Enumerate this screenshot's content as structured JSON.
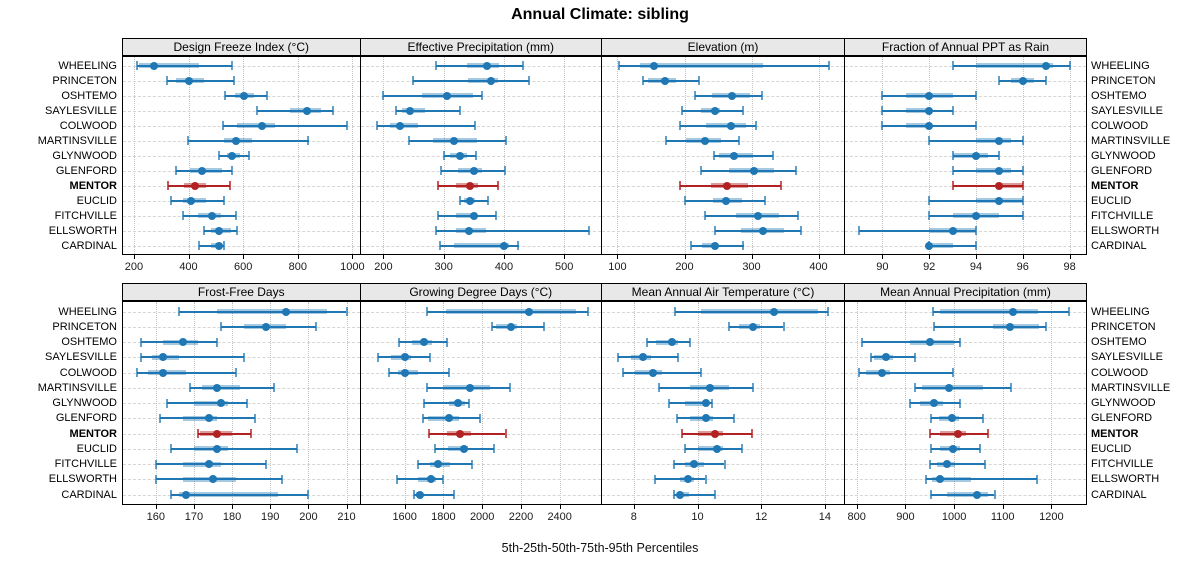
{
  "title": "Annual Climate: sibling",
  "caption": "5th-25th-50th-75th-95th Percentiles",
  "sites": [
    "WHEELING",
    "PRINCETON",
    "OSHTEMO",
    "SAYLESVILLE",
    "COLWOOD",
    "MARTINSVILLE",
    "GLYNWOOD",
    "GLENFORD",
    "MENTOR",
    "EUCLID",
    "FITCHVILLE",
    "ELLSWORTH",
    "CARDINAL"
  ],
  "highlight_site": "MENTOR",
  "percentile_labels": [
    "5th",
    "25th",
    "50th",
    "75th",
    "95th"
  ],
  "colors": {
    "series": "#1f77b4",
    "series_band": "rgba(31,119,180,0.40)",
    "series_cap": "rgba(31,119,180,0.70)",
    "highlight": "#b22222",
    "highlight_band": "rgba(178,34,34,0.45)",
    "highlight_cap": "rgba(178,34,34,0.75)",
    "strip_bg": "#e8e8e8",
    "grid": "#c9c9c9"
  },
  "chart_data": {
    "type": "scatter",
    "subtype": "percentile-interval-dotplot",
    "layout": "2 rows x 4 columns of panels, shared site rows, MENTOR highlighted in red",
    "grid": true,
    "panels": [
      {
        "title": "Design Freeze Index (°C)",
        "row": "top",
        "ticks": [
          200,
          400,
          600,
          800,
          1000
        ],
        "range": [
          160,
          1026
        ],
        "series": [
          [
            212,
            220,
            275,
            440,
            560
          ],
          [
            320,
            355,
            402,
            457,
            566
          ],
          [
            535,
            570,
            602,
            640,
            687
          ],
          [
            650,
            772,
            833,
            887,
            930
          ],
          [
            526,
            578,
            669,
            718,
            980
          ],
          [
            396,
            530,
            572,
            633,
            839
          ],
          [
            511,
            542,
            560,
            590,
            620
          ],
          [
            355,
            405,
            450,
            523,
            559
          ],
          [
            323,
            384,
            424,
            465,
            551
          ],
          [
            336,
            378,
            408,
            463,
            530
          ],
          [
            378,
            433,
            487,
            518,
            572
          ],
          [
            457,
            481,
            511,
            554,
            578
          ],
          [
            439,
            481,
            511,
            524,
            530
          ]
        ]
      },
      {
        "title": "Effective Precipitation (mm)",
        "row": "top",
        "ticks": [
          200,
          300,
          400,
          500
        ],
        "range": [
          162,
          561
        ],
        "series": [
          [
            287,
            339,
            371,
            392,
            431
          ],
          [
            249,
            341,
            378,
            390,
            441
          ],
          [
            200,
            264,
            306,
            348,
            364
          ],
          [
            221,
            230,
            244,
            269,
            327
          ],
          [
            190,
            211,
            228,
            258,
            352
          ],
          [
            243,
            282,
            317,
            355,
            403
          ],
          [
            301,
            310,
            327,
            339,
            353
          ],
          [
            295,
            324,
            351,
            363,
            401
          ],
          [
            291,
            321,
            343,
            357,
            390
          ],
          [
            327,
            333,
            343,
            352,
            373
          ],
          [
            291,
            321,
            350,
            356,
            387
          ],
          [
            288,
            320,
            342,
            370,
            541
          ],
          [
            293,
            317,
            400,
            408,
            424
          ]
        ]
      },
      {
        "title": "Elevation (m)",
        "row": "top",
        "ticks": [
          100,
          200,
          300,
          400
        ],
        "range": [
          77,
          438
        ],
        "series": [
          [
            103,
            134,
            155,
            317,
            415
          ],
          [
            138,
            145,
            171,
            187,
            222
          ],
          [
            215,
            241,
            271,
            298,
            316
          ],
          [
            197,
            224,
            246,
            253,
            287
          ],
          [
            194,
            232,
            269,
            292,
            307
          ],
          [
            172,
            202,
            231,
            254,
            282
          ],
          [
            244,
            251,
            274,
            303,
            332
          ],
          [
            224,
            267,
            303,
            333,
            367
          ],
          [
            193,
            239,
            264,
            295,
            344
          ],
          [
            200,
            242,
            262,
            286,
            320
          ],
          [
            231,
            277,
            310,
            341,
            370
          ],
          [
            246,
            284,
            317,
            349,
            374
          ],
          [
            209,
            226,
            245,
            246,
            288
          ]
        ]
      },
      {
        "title": "Fraction of Annual PPT as Rain",
        "row": "top",
        "ticks": [
          90,
          92,
          94,
          96,
          98
        ],
        "range": [
          88.4,
          98.7
        ],
        "series": [
          [
            93,
            94,
            97,
            97.3,
            98
          ],
          [
            95,
            95.5,
            96,
            96.5,
            97
          ],
          [
            90,
            91,
            92,
            93,
            94
          ],
          [
            90,
            91,
            92,
            92,
            93
          ],
          [
            90,
            91,
            92,
            92,
            94
          ],
          [
            92,
            94,
            95,
            95.5,
            96
          ],
          [
            93,
            93,
            94,
            94.5,
            95
          ],
          [
            93,
            94,
            95,
            95.5,
            96
          ],
          [
            93,
            95,
            95,
            96,
            96
          ],
          [
            92,
            94,
            95,
            96,
            96
          ],
          [
            92,
            93,
            94,
            95,
            96
          ],
          [
            89,
            92,
            93,
            94,
            94
          ],
          [
            92,
            92,
            92,
            93,
            94
          ]
        ]
      },
      {
        "title": "Frost-Free Days",
        "row": "bottom",
        "ticks": [
          160,
          170,
          180,
          190,
          200,
          210
        ],
        "range": [
          151.4,
          213.4
        ],
        "series": [
          [
            166,
            176,
            194,
            205,
            210
          ],
          [
            177,
            183,
            189,
            194,
            202
          ],
          [
            156,
            162,
            167,
            171,
            176
          ],
          [
            156,
            159,
            162,
            166,
            183
          ],
          [
            155,
            158,
            162,
            168,
            181
          ],
          [
            169,
            172,
            176,
            182,
            191
          ],
          [
            163,
            170,
            177,
            179,
            184
          ],
          [
            161,
            167,
            174,
            176,
            186
          ],
          [
            171,
            171.5,
            176,
            180,
            185
          ],
          [
            164,
            170,
            176,
            179,
            197
          ],
          [
            160,
            167,
            174,
            177,
            189
          ],
          [
            160,
            167,
            175,
            181,
            193
          ],
          [
            164,
            166,
            168,
            192,
            200
          ]
        ]
      },
      {
        "title": "Growing Degree Days (°C)",
        "row": "bottom",
        "ticks": [
          1600,
          1800,
          2000,
          2200,
          2400
        ],
        "range": [
          1372,
          2613
        ],
        "series": [
          [
            1715,
            1815,
            2240,
            2485,
            2545
          ],
          [
            2050,
            2070,
            2150,
            2180,
            2320
          ],
          [
            1570,
            1635,
            1700,
            1740,
            1820
          ],
          [
            1460,
            1530,
            1600,
            1635,
            1730
          ],
          [
            1520,
            1565,
            1600,
            1670,
            1830
          ],
          [
            1715,
            1800,
            1935,
            2040,
            2145
          ],
          [
            1700,
            1830,
            1875,
            1910,
            1930
          ],
          [
            1695,
            1720,
            1827,
            1880,
            1990
          ],
          [
            1725,
            1820,
            1887,
            1940,
            2120
          ],
          [
            1754,
            1822,
            1908,
            1925,
            2062
          ],
          [
            1670,
            1730,
            1770,
            1832,
            1947
          ],
          [
            1560,
            1668,
            1737,
            1760,
            1798
          ],
          [
            1650,
            1656,
            1679,
            1690,
            1856
          ]
        ]
      },
      {
        "title": "Mean Annual Air Temperature (°C)",
        "row": "bottom",
        "ticks": [
          8,
          10,
          12,
          14
        ],
        "range": [
          7.0,
          14.6
        ],
        "series": [
          [
            9.3,
            10.1,
            12.4,
            13.8,
            14.1
          ],
          [
            11.0,
            11.3,
            11.75,
            11.95,
            12.7
          ],
          [
            8.4,
            8.7,
            9.2,
            9.4,
            9.75
          ],
          [
            7.5,
            7.9,
            8.3,
            8.55,
            9.4
          ],
          [
            7.65,
            8.05,
            8.6,
            8.9,
            10.1
          ],
          [
            8.8,
            9.75,
            10.4,
            11.0,
            11.75
          ],
          [
            9.1,
            9.6,
            10.25,
            10.3,
            10.45
          ],
          [
            9.35,
            9.75,
            10.25,
            10.5,
            11.15
          ],
          [
            9.5,
            10.0,
            10.55,
            10.8,
            11.7
          ],
          [
            9.6,
            10.0,
            10.6,
            10.8,
            11.4
          ],
          [
            9.25,
            9.6,
            9.9,
            10.2,
            10.85
          ],
          [
            8.65,
            9.45,
            9.7,
            9.9,
            10.25
          ],
          [
            9.25,
            9.35,
            9.45,
            9.75,
            10.55
          ]
        ]
      },
      {
        "title": "Mean Annual Precipitation (mm)",
        "row": "bottom",
        "ticks": [
          800,
          900,
          1000,
          1100,
          1200
        ],
        "range": [
          776,
          1271
        ],
        "series": [
          [
            957,
            970,
            1120,
            1173,
            1237
          ],
          [
            958,
            1080,
            1115,
            1175,
            1188
          ],
          [
            810,
            910,
            950,
            1000,
            1013
          ],
          [
            830,
            836,
            861,
            875,
            920
          ],
          [
            805,
            820,
            852,
            868,
            997
          ],
          [
            920,
            935,
            990,
            1060,
            1117
          ],
          [
            910,
            930,
            958,
            977,
            1013
          ],
          [
            952,
            968,
            995,
            1010,
            1060
          ],
          [
            950,
            972,
            1008,
            1025,
            1070
          ],
          [
            952,
            970,
            997,
            1011,
            1054
          ],
          [
            950,
            965,
            986,
            1002,
            1063
          ],
          [
            943,
            955,
            972,
            1034,
            1170
          ],
          [
            952,
            986,
            1047,
            1070,
            1083
          ]
        ]
      }
    ]
  }
}
